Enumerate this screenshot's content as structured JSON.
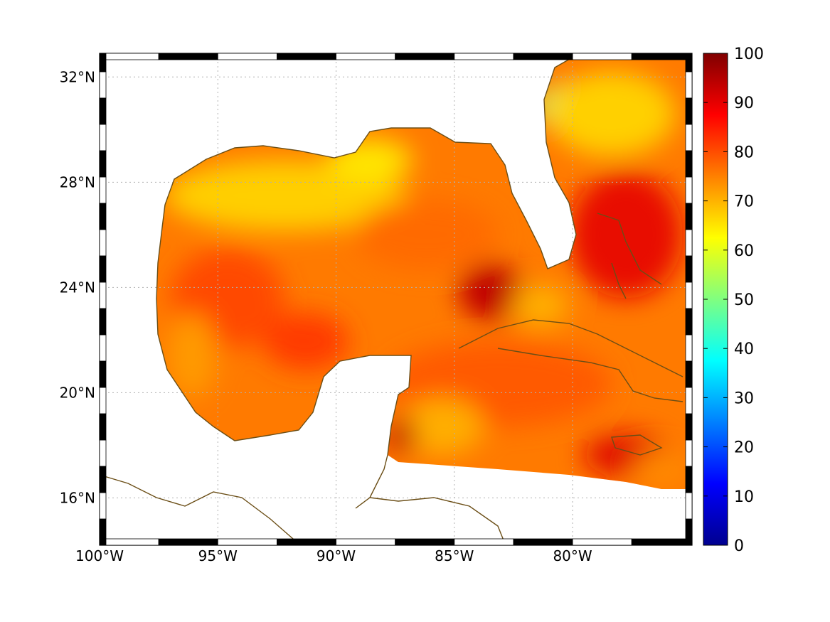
{
  "map": {
    "projection": "equirectangular",
    "lon_range": [
      -100,
      -74.95
    ],
    "lat_range": [
      14.2,
      32.9
    ],
    "grid": "dotted",
    "frame": "alternating black/white ticked border",
    "coastline_color": "#6b4e16",
    "land_color": "#ffffff",
    "x_ticks": [
      {
        "lon": -100,
        "label": "100°W"
      },
      {
        "lon": -95,
        "label": "95°W"
      },
      {
        "lon": -90,
        "label": "90°W"
      },
      {
        "lon": -85,
        "label": "85°W"
      },
      {
        "lon": -80,
        "label": "80°W"
      }
    ],
    "y_ticks": [
      {
        "lat": 16,
        "label": "16°N"
      },
      {
        "lat": 20,
        "label": "20°N"
      },
      {
        "lat": 24,
        "label": "24°N"
      },
      {
        "lat": 28,
        "label": "28°N"
      },
      {
        "lat": 32,
        "label": "32°N"
      }
    ],
    "field_range": [
      0,
      100
    ],
    "field_colormap": "jet"
  },
  "colorbar": {
    "ticks": [
      {
        "value": 0,
        "label": "0"
      },
      {
        "value": 10,
        "label": "10"
      },
      {
        "value": 20,
        "label": "20"
      },
      {
        "value": 30,
        "label": "30"
      },
      {
        "value": 40,
        "label": "40"
      },
      {
        "value": 50,
        "label": "50"
      },
      {
        "value": 60,
        "label": "60"
      },
      {
        "value": 70,
        "label": "70"
      },
      {
        "value": 80,
        "label": "80"
      },
      {
        "value": 90,
        "label": "90"
      },
      {
        "value": 100,
        "label": "100"
      }
    ],
    "stops": [
      "#00008f",
      "#0000ff",
      "#0080ff",
      "#00ffff",
      "#80ff80",
      "#ffff00",
      "#ff8000",
      "#ff0000",
      "#800000"
    ]
  }
}
